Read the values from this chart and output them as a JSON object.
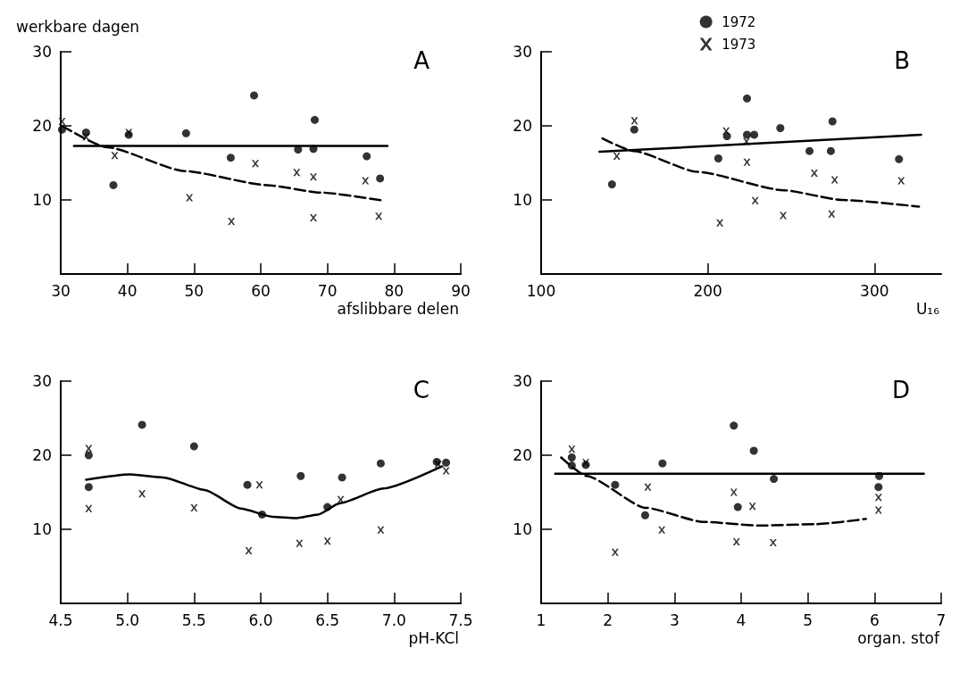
{
  "chart_data": [
    {
      "type": "scatter",
      "title": "A",
      "ylabel": "werkbare dagen",
      "xlabel": "afslibbare delen",
      "xlim": [
        30,
        90
      ],
      "xticks": [
        30,
        40,
        50,
        60,
        70,
        80,
        90
      ],
      "ylim": [
        0,
        30
      ],
      "yticks": [
        10,
        20,
        30
      ],
      "series": [
        {
          "color": "#000000",
          "marker": "circle",
          "x": [
            30.2,
            33.8,
            37.9,
            40.2,
            48.8,
            55.5,
            59.0,
            65.6,
            67.9,
            68.1,
            75.9,
            77.9
          ],
          "values": [
            19.5,
            19.1,
            12.0,
            18.8,
            19.0,
            15.7,
            24.1,
            16.8,
            16.9,
            20.8,
            15.9,
            12.9
          ]
        },
        {
          "color": "#000000",
          "marker": "cross",
          "x": [
            30.2,
            33.8,
            38.1,
            40.2,
            49.3,
            55.6,
            59.2,
            65.4,
            67.9,
            67.9,
            75.7,
            77.7
          ],
          "values": [
            20.6,
            18.5,
            16.0,
            19.1,
            10.3,
            7.1,
            14.9,
            13.7,
            13.1,
            7.6,
            12.6,
            7.8
          ]
        },
        {
          "type": "line",
          "color": "#000000",
          "line_style": "solid",
          "x": [
            32,
            79
          ],
          "values": [
            17.3,
            17.3
          ]
        },
        {
          "type": "line",
          "color": "#000000",
          "line_style": "dashed",
          "x": [
            30.2,
            37,
            48.6,
            60.9,
            69,
            78.4
          ],
          "values": [
            20.0,
            17.1,
            13.9,
            12.0,
            11.0,
            9.9
          ]
        }
      ]
    },
    {
      "type": "scatter",
      "title": "B",
      "xlabel": "U₁₆",
      "xlim": [
        100,
        340
      ],
      "xticks": [
        100,
        200,
        300
      ],
      "ylim": [
        0,
        30
      ],
      "yticks": [
        10,
        20,
        30
      ],
      "legend": "top",
      "series": [
        {
          "name": "1972",
          "color": "#000000",
          "marker": "circle",
          "x": [
            142.5,
            155.9,
            206.3,
            211.5,
            223.5,
            223.5,
            227.8,
            243.5,
            261,
            273.8,
            274.8,
            314.7
          ],
          "values": [
            12.1,
            19.5,
            15.6,
            18.6,
            23.7,
            18.8,
            18.8,
            19.7,
            16.6,
            16.6,
            20.6,
            15.5
          ]
        },
        {
          "name": "1973",
          "color": "#000000",
          "marker": "cross",
          "x": [
            145.4,
            156,
            207.2,
            211,
            223.2,
            223.5,
            228.4,
            245.2,
            263.9,
            276.1,
            274.3,
            316
          ],
          "values": [
            15.9,
            20.7,
            6.9,
            19.3,
            17.9,
            15.1,
            9.9,
            7.9,
            13.6,
            12.7,
            8.1,
            12.6
          ]
        },
        {
          "type": "line",
          "color": "#000000",
          "line_style": "solid",
          "x": [
            135,
            328
          ],
          "values": [
            16.5,
            18.8
          ]
        },
        {
          "type": "line",
          "color": "#000000",
          "line_style": "dashed",
          "x": [
            136.8,
            155.5,
            193.7,
            245.7,
            280.4,
            326.7
          ],
          "values": [
            18.3,
            16.6,
            13.8,
            11.3,
            10.0,
            9.1
          ]
        }
      ]
    },
    {
      "type": "scatter",
      "title": "C",
      "xlabel": "pH-KCl",
      "xlim": [
        4.5,
        7.5
      ],
      "xticks": [
        {
          "value": 4.5,
          "label": "4.5"
        },
        {
          "value": 5,
          "label": "5.0"
        },
        {
          "value": 5.5,
          "label": "5.5"
        },
        {
          "value": 6,
          "label": "6.0"
        },
        {
          "value": 6.5,
          "label": "6.5"
        },
        {
          "value": 7,
          "label": "7.0"
        },
        {
          "value": 7.5,
          "label": "7.5"
        }
      ],
      "ylim": [
        0,
        30
      ],
      "yticks": [
        10,
        20,
        30
      ],
      "series": [
        {
          "color": "#000000",
          "marker": "circle",
          "x": [
            4.71,
            4.71,
            5.11,
            5.5,
            5.9,
            6.01,
            6.3,
            6.61,
            6.5,
            6.9,
            7.32,
            7.39
          ],
          "values": [
            20.0,
            15.7,
            24.1,
            21.2,
            16.0,
            12.0,
            17.2,
            17.0,
            13.0,
            18.9,
            19.1,
            19.0
          ]
        },
        {
          "color": "#000000",
          "marker": "cross",
          "x": [
            4.71,
            4.71,
            5.11,
            5.5,
            5.91,
            5.99,
            6.29,
            6.5,
            6.6,
            6.9,
            7.33,
            7.39
          ],
          "values": [
            20.9,
            12.8,
            14.8,
            12.9,
            7.1,
            16.0,
            8.1,
            8.4,
            14.0,
            9.9,
            18.8,
            17.9
          ]
        },
        {
          "type": "line",
          "color": "#000000",
          "line_style": "solid",
          "x": [
            4.69,
            5.02,
            5.27,
            5.58,
            5.85,
            6.09,
            6.26,
            6.43,
            6.59,
            6.92,
            7.36
          ],
          "values": [
            16.7,
            17.4,
            17.0,
            15.3,
            12.8,
            11.7,
            11.5,
            12.0,
            13.5,
            15.5,
            18.5
          ]
        }
      ]
    },
    {
      "type": "scatter",
      "title": "D",
      "xlabel": "organ. stof",
      "xlim": [
        1,
        7
      ],
      "xticks": [
        1,
        2,
        3,
        4,
        5,
        6,
        7
      ],
      "ylim": [
        0,
        30
      ],
      "yticks": [
        10,
        20,
        30
      ],
      "series": [
        {
          "color": "#000000",
          "marker": "circle",
          "x": [
            1.46,
            1.46,
            1.67,
            2.11,
            2.56,
            2.82,
            3.89,
            3.95,
            4.19,
            4.49,
            6.07,
            6.06
          ],
          "values": [
            19.7,
            18.6,
            18.7,
            16.0,
            11.9,
            18.9,
            24.0,
            13.0,
            20.6,
            16.8,
            17.2,
            15.7
          ]
        },
        {
          "color": "#000000",
          "marker": "cross",
          "x": [
            1.46,
            1.67,
            2.11,
            2.6,
            2.81,
            3.89,
            3.93,
            4.17,
            4.48,
            6.06,
            6.06
          ],
          "values": [
            20.8,
            19.0,
            6.9,
            15.7,
            9.9,
            15.0,
            8.3,
            13.1,
            8.2,
            14.3,
            12.6
          ]
        },
        {
          "type": "line",
          "color": "#000000",
          "line_style": "solid",
          "x": [
            1.21,
            6.74
          ],
          "values": [
            17.5,
            17.5
          ]
        },
        {
          "type": "line",
          "color": "#000000",
          "line_style": "dashed",
          "x": [
            1.3,
            1.68,
            2.57,
            3.43,
            4.28,
            5.13,
            5.87
          ],
          "values": [
            19.7,
            17.2,
            12.9,
            11.0,
            10.5,
            10.7,
            11.4
          ]
        }
      ]
    }
  ]
}
